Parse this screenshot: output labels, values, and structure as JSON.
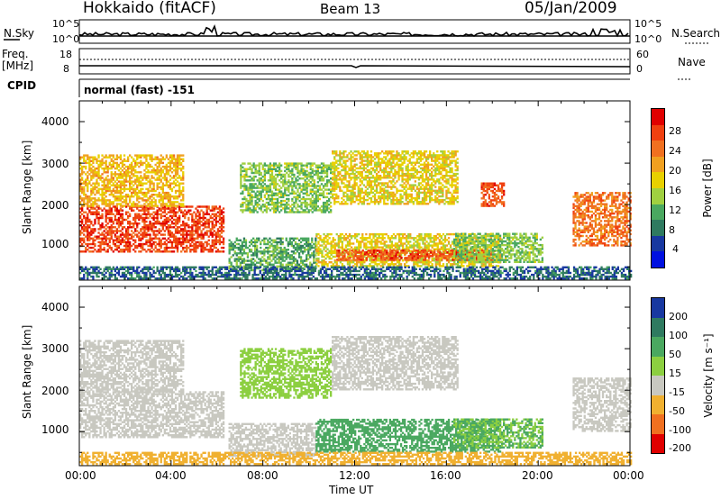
{
  "header": {
    "radar": "Hokkaido (fitACF)",
    "beam": "Beam 13",
    "date": "05/Jan/2009"
  },
  "strips": {
    "nsky_label": "N.Sky",
    "nsearch_label": "N.Search",
    "noise_ticks": [
      "10^5",
      "10^0"
    ],
    "freq_label_1": "Freq.",
    "freq_label_2": "[MHz]",
    "freq_ticks": [
      "18",
      "8"
    ],
    "nave_label": "Nave",
    "nave_ticks": [
      "60",
      "0"
    ],
    "cpid_label": "CPID",
    "cpid_text": "normal (fast) -151"
  },
  "x_ticks": [
    "00:00",
    "04:00",
    "08:00",
    "12:00",
    "16:00",
    "20:00",
    "00:00"
  ],
  "x_axis_label": "Time UT",
  "y_ticks": [
    "4000",
    "3000",
    "2000",
    "1000"
  ],
  "y_axis_label": "Slant Range [km]",
  "power_colorbar": {
    "label": "Power [dB]",
    "ticks": [
      "28",
      "24",
      "20",
      "16",
      "12",
      "8",
      "4"
    ],
    "colors": [
      "#e00000",
      "#f04010",
      "#f07020",
      "#f0a020",
      "#e8d000",
      "#a0d040",
      "#4aa860",
      "#2f7a60",
      "#1838a0",
      "#0010e0"
    ]
  },
  "velocity_colorbar": {
    "label": "Velocity [m s⁻¹]",
    "ticks": [
      "200",
      "100",
      "50",
      "15",
      "-15",
      "-50",
      "-100",
      "-200"
    ],
    "colors": [
      "#1838a0",
      "#2f7a60",
      "#4aa860",
      "#8ccf40",
      "#c8c8c0",
      "#f0b030",
      "#f07020",
      "#e00000"
    ]
  },
  "chart_data": [
    {
      "type": "heatmap",
      "title": "Power [dB]",
      "xlabel": "Time UT",
      "ylabel": "Slant Range [km]",
      "xlim": [
        0,
        24
      ],
      "ylim": [
        180,
        4500
      ],
      "series": [
        {
          "name": "Power [dB]",
          "regions": [
            {
              "t0": 0.0,
              "t1": 6.3,
              "r0": 850,
              "r1": 1950,
              "power": 27
            },
            {
              "t0": 0.0,
              "t1": 4.5,
              "r0": 1950,
              "r1": 3200,
              "power": 20
            },
            {
              "t0": 6.5,
              "t1": 10.3,
              "r0": 400,
              "r1": 1200,
              "power": 12
            },
            {
              "t0": 10.3,
              "t1": 18.3,
              "r0": 500,
              "r1": 1300,
              "power": 18
            },
            {
              "t0": 11.2,
              "t1": 18.0,
              "r0": 650,
              "r1": 900,
              "power": 26
            },
            {
              "t0": 16.3,
              "t1": 20.2,
              "r0": 600,
              "r1": 1300,
              "power": 14
            },
            {
              "t0": 7.0,
              "t1": 11.0,
              "r0": 1800,
              "r1": 3000,
              "power": 14
            },
            {
              "t0": 11.0,
              "t1": 16.5,
              "r0": 2000,
              "r1": 3300,
              "power": 18
            },
            {
              "t0": 17.5,
              "t1": 18.5,
              "r0": 1950,
              "r1": 2500,
              "power": 26
            },
            {
              "t0": 21.5,
              "t1": 24.0,
              "r0": 1000,
              "r1": 2300,
              "power": 24
            },
            {
              "t0": 0.0,
              "t1": 24.0,
              "r0": 200,
              "r1": 500,
              "power": 8
            }
          ]
        }
      ]
    },
    {
      "type": "heatmap",
      "title": "Velocity [m s⁻¹]",
      "xlabel": "Time UT",
      "ylabel": "Slant Range [km]",
      "xlim": [
        0,
        24
      ],
      "ylim": [
        180,
        4500
      ],
      "series": [
        {
          "name": "Velocity [m s⁻¹]",
          "regions": [
            {
              "t0": 0.0,
              "t1": 6.3,
              "r0": 850,
              "r1": 1950,
              "velocity": 0
            },
            {
              "t0": 0.0,
              "t1": 4.5,
              "r0": 1950,
              "r1": 3200,
              "velocity": 5
            },
            {
              "t0": 6.5,
              "t1": 10.3,
              "r0": 400,
              "r1": 1200,
              "velocity": -5
            },
            {
              "t0": 10.3,
              "t1": 18.3,
              "r0": 500,
              "r1": 1300,
              "velocity": 40
            },
            {
              "t0": 16.3,
              "t1": 20.2,
              "r0": 600,
              "r1": 1300,
              "velocity": 30
            },
            {
              "t0": 7.0,
              "t1": 11.0,
              "r0": 1800,
              "r1": 3000,
              "velocity": 25
            },
            {
              "t0": 11.0,
              "t1": 16.5,
              "r0": 2000,
              "r1": 3300,
              "velocity": 10
            },
            {
              "t0": 21.5,
              "t1": 24.0,
              "r0": 1000,
              "r1": 2300,
              "velocity": 0
            },
            {
              "t0": 0.0,
              "t1": 24.0,
              "r0": 200,
              "r1": 500,
              "velocity": -30
            }
          ]
        }
      ]
    }
  ]
}
